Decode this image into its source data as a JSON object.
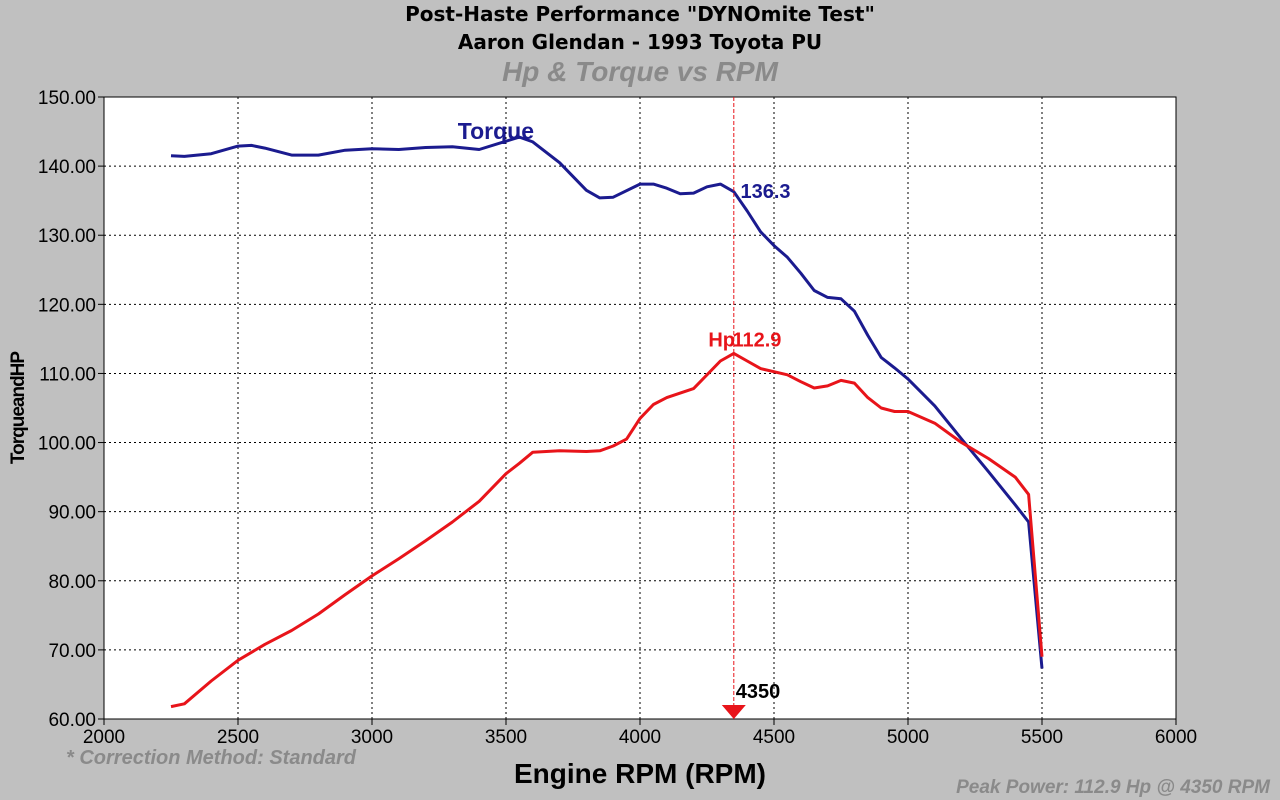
{
  "header": {
    "title": "Post-Haste Performance \"DYNOmite Test\"",
    "subtitle": "Aaron Glendan - 1993 Toyota PU",
    "chart_title": "Hp & Torque vs RPM"
  },
  "notes": {
    "correction": "* Correction Method: Standard",
    "peak": "Peak Power: 112.9 Hp @ 4350 RPM"
  },
  "colors": {
    "background": "#c0c0c0",
    "plot_area": "#ffffff",
    "torque": "#1b1b8f",
    "hp": "#e8141a",
    "cursor": "#e8141a"
  },
  "chart_data": {
    "type": "line",
    "title": "Hp & Torque vs RPM",
    "xlabel": "Engine RPM (RPM)",
    "ylabel": "TorqueandHP",
    "xlim": [
      2000,
      6000
    ],
    "ylim": [
      60,
      150
    ],
    "xticks": [
      2000,
      2500,
      3000,
      3500,
      4000,
      4500,
      5000,
      5500,
      6000
    ],
    "xtick_labels": [
      "2000",
      "2500",
      "3000",
      "3500",
      "4000",
      "4500",
      "5000",
      "5500",
      "6000"
    ],
    "yticks": [
      60,
      70,
      80,
      90,
      100,
      110,
      120,
      130,
      140,
      150
    ],
    "ytick_labels": [
      "60.00",
      "70.00",
      "80.00",
      "90.00",
      "100.00",
      "110.00",
      "120.00",
      "130.00",
      "140.00",
      "150.00"
    ],
    "grid": true,
    "cursor": {
      "x": 4350,
      "label": "4350"
    },
    "series": [
      {
        "name": "Torque",
        "color": "#1b1b8f",
        "marker_label": "136.3",
        "points": [
          [
            2250,
            141.5
          ],
          [
            2300,
            141.4
          ],
          [
            2400,
            141.8
          ],
          [
            2500,
            142.9
          ],
          [
            2550,
            143.0
          ],
          [
            2600,
            142.6
          ],
          [
            2700,
            141.6
          ],
          [
            2800,
            141.6
          ],
          [
            2900,
            142.3
          ],
          [
            3000,
            142.5
          ],
          [
            3100,
            142.4
          ],
          [
            3200,
            142.7
          ],
          [
            3300,
            142.8
          ],
          [
            3400,
            142.4
          ],
          [
            3500,
            143.6
          ],
          [
            3550,
            144.2
          ],
          [
            3600,
            143.5
          ],
          [
            3700,
            140.5
          ],
          [
            3800,
            136.5
          ],
          [
            3850,
            135.4
          ],
          [
            3900,
            135.5
          ],
          [
            4000,
            137.4
          ],
          [
            4050,
            137.4
          ],
          [
            4100,
            136.8
          ],
          [
            4150,
            136.0
          ],
          [
            4200,
            136.1
          ],
          [
            4250,
            137.0
          ],
          [
            4300,
            137.4
          ],
          [
            4350,
            136.3
          ],
          [
            4400,
            133.5
          ],
          [
            4450,
            130.5
          ],
          [
            4500,
            128.5
          ],
          [
            4550,
            126.8
          ],
          [
            4600,
            124.5
          ],
          [
            4650,
            122.0
          ],
          [
            4700,
            121.0
          ],
          [
            4750,
            120.8
          ],
          [
            4800,
            119.0
          ],
          [
            4850,
            115.5
          ],
          [
            4900,
            112.3
          ],
          [
            4950,
            110.8
          ],
          [
            5000,
            109.2
          ],
          [
            5100,
            105.3
          ],
          [
            5200,
            100.5
          ],
          [
            5300,
            95.8
          ],
          [
            5400,
            91.0
          ],
          [
            5450,
            88.5
          ],
          [
            5500,
            67.3
          ]
        ]
      },
      {
        "name": "Hp",
        "color": "#e8141a",
        "marker_label": "112.9",
        "points": [
          [
            2250,
            61.8
          ],
          [
            2300,
            62.2
          ],
          [
            2400,
            65.5
          ],
          [
            2500,
            68.5
          ],
          [
            2600,
            70.8
          ],
          [
            2700,
            72.8
          ],
          [
            2800,
            75.2
          ],
          [
            2900,
            78.0
          ],
          [
            3000,
            80.7
          ],
          [
            3100,
            83.2
          ],
          [
            3200,
            85.8
          ],
          [
            3300,
            88.5
          ],
          [
            3400,
            91.5
          ],
          [
            3500,
            95.5
          ],
          [
            3550,
            97.0
          ],
          [
            3600,
            98.6
          ],
          [
            3700,
            98.8
          ],
          [
            3800,
            98.7
          ],
          [
            3850,
            98.8
          ],
          [
            3900,
            99.5
          ],
          [
            3950,
            100.5
          ],
          [
            4000,
            103.5
          ],
          [
            4050,
            105.5
          ],
          [
            4100,
            106.5
          ],
          [
            4200,
            107.8
          ],
          [
            4300,
            111.8
          ],
          [
            4350,
            112.9
          ],
          [
            4400,
            111.8
          ],
          [
            4450,
            110.7
          ],
          [
            4550,
            109.8
          ],
          [
            4600,
            108.8
          ],
          [
            4650,
            107.9
          ],
          [
            4700,
            108.2
          ],
          [
            4750,
            109.0
          ],
          [
            4800,
            108.6
          ],
          [
            4850,
            106.5
          ],
          [
            4900,
            105.0
          ],
          [
            4950,
            104.5
          ],
          [
            5000,
            104.5
          ],
          [
            5100,
            102.8
          ],
          [
            5200,
            100.0
          ],
          [
            5300,
            97.7
          ],
          [
            5400,
            95.0
          ],
          [
            5450,
            92.5
          ],
          [
            5500,
            69.0
          ]
        ]
      }
    ]
  }
}
